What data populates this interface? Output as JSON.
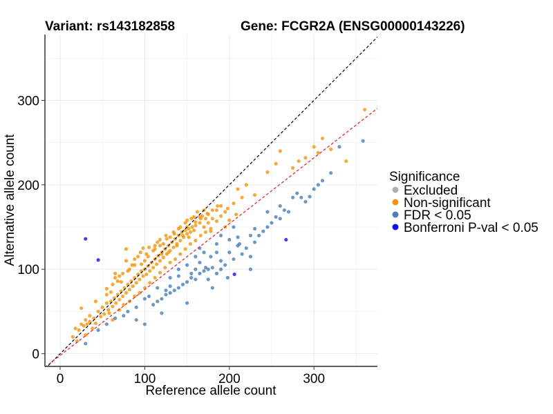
{
  "title": {
    "variant": "Variant: rs143182858",
    "gene": "Gene: FCGR2A (ENSG00000143226)"
  },
  "chart_data": {
    "type": "scatter",
    "xlabel": "Reference allele count",
    "ylabel": "Alternative allele count",
    "xlim": [
      -18,
      375
    ],
    "ylim": [
      -15,
      378
    ],
    "xticks": [
      0,
      100,
      200,
      300
    ],
    "yticks": [
      0,
      100,
      200,
      300
    ],
    "grid": true,
    "reference_lines": [
      {
        "name": "identity",
        "slope": 1.0,
        "intercept": 0,
        "color": "#000000",
        "dash": "dashed"
      },
      {
        "name": "fit",
        "slope": 0.78,
        "intercept": -2,
        "color": "#e41a1c",
        "dash": "dashed"
      }
    ],
    "legend": {
      "title": "Significance",
      "position": "right",
      "entries": [
        {
          "label": "Excluded",
          "color": "#b0b0b0"
        },
        {
          "label": "Non-significant",
          "color": "#f5930f"
        },
        {
          "label": "FDR < 0.05",
          "color": "#4a7eb5"
        },
        {
          "label": "Bonferroni P-val < 0.05",
          "color": "#1010ee"
        }
      ]
    },
    "series": [
      {
        "group": "Non-significant",
        "color": "#f5930f",
        "points": [
          [
            25,
            54
          ],
          [
            42,
            62
          ],
          [
            55,
            77
          ],
          [
            60,
            73
          ],
          [
            65,
            90
          ],
          [
            65,
            95
          ],
          [
            70,
            92
          ],
          [
            72,
            85
          ],
          [
            78,
            110
          ],
          [
            78,
            124
          ],
          [
            80,
            98
          ],
          [
            85,
            105
          ],
          [
            88,
            105
          ],
          [
            92,
            115
          ],
          [
            95,
            120
          ],
          [
            98,
            125
          ],
          [
            100,
            110
          ],
          [
            102,
            118
          ],
          [
            105,
            126
          ],
          [
            110,
            122
          ],
          [
            112,
            128
          ],
          [
            115,
            132
          ],
          [
            118,
            135
          ],
          [
            120,
            118
          ],
          [
            122,
            130
          ],
          [
            125,
            140
          ],
          [
            128,
            120
          ],
          [
            130,
            138
          ],
          [
            135,
            142
          ],
          [
            138,
            128
          ],
          [
            140,
            148
          ],
          [
            145,
            140
          ],
          [
            148,
            155
          ],
          [
            150,
            150
          ],
          [
            152,
            138
          ],
          [
            155,
            160
          ],
          [
            160,
            152
          ],
          [
            162,
            168
          ],
          [
            165,
            155
          ],
          [
            168,
            163
          ],
          [
            170,
            170
          ],
          [
            172,
            160
          ],
          [
            175,
            155
          ],
          [
            178,
            145
          ],
          [
            180,
            160
          ],
          [
            185,
            157
          ],
          [
            190,
            163
          ],
          [
            195,
            150
          ],
          [
            200,
            158
          ],
          [
            205,
            178
          ],
          [
            210,
            195
          ],
          [
            215,
            185
          ],
          [
            220,
            200
          ],
          [
            230,
            188
          ],
          [
            245,
            215
          ],
          [
            255,
            225
          ],
          [
            260,
            240
          ],
          [
            275,
            220
          ],
          [
            282,
            228
          ],
          [
            290,
            232
          ],
          [
            300,
            245
          ],
          [
            305,
            238
          ],
          [
            310,
            255
          ],
          [
            320,
            242
          ],
          [
            338,
            228
          ],
          [
            360,
            289
          ],
          [
            15,
            20
          ],
          [
            18,
            30
          ],
          [
            20,
            15
          ],
          [
            22,
            28
          ],
          [
            25,
            35
          ],
          [
            28,
            33
          ],
          [
            30,
            22
          ],
          [
            30,
            40
          ],
          [
            32,
            35
          ],
          [
            35,
            38
          ],
          [
            35,
            45
          ],
          [
            38,
            30
          ],
          [
            40,
            42
          ],
          [
            42,
            36
          ],
          [
            45,
            50
          ],
          [
            48,
            44
          ],
          [
            50,
            55
          ],
          [
            52,
            47
          ],
          [
            55,
            60
          ],
          [
            57,
            52
          ],
          [
            58,
            48
          ],
          [
            60,
            62
          ],
          [
            62,
            56
          ],
          [
            64,
            66
          ],
          [
            66,
            60
          ],
          [
            68,
            70
          ],
          [
            70,
            64
          ],
          [
            72,
            74
          ],
          [
            74,
            68
          ],
          [
            76,
            78
          ],
          [
            78,
            72
          ],
          [
            80,
            82
          ],
          [
            82,
            76
          ],
          [
            84,
            86
          ],
          [
            86,
            80
          ],
          [
            88,
            90
          ],
          [
            90,
            84
          ],
          [
            92,
            94
          ],
          [
            94,
            88
          ],
          [
            96,
            98
          ],
          [
            98,
            92
          ],
          [
            100,
            100
          ],
          [
            102,
            94
          ],
          [
            104,
            104
          ],
          [
            106,
            98
          ],
          [
            108,
            108
          ],
          [
            110,
            102
          ],
          [
            112,
            112
          ],
          [
            114,
            106
          ],
          [
            116,
            116
          ],
          [
            118,
            110
          ],
          [
            120,
            120
          ],
          [
            122,
            114
          ],
          [
            124,
            124
          ],
          [
            126,
            118
          ],
          [
            128,
            128
          ],
          [
            130,
            122
          ],
          [
            132,
            132
          ],
          [
            134,
            126
          ],
          [
            136,
            136
          ],
          [
            138,
            130
          ],
          [
            140,
            140
          ],
          [
            142,
            134
          ],
          [
            144,
            144
          ],
          [
            146,
            138
          ],
          [
            148,
            146
          ],
          [
            150,
            142
          ],
          [
            152,
            148
          ],
          [
            154,
            144
          ],
          [
            156,
            150
          ],
          [
            158,
            146
          ],
          [
            160,
            156
          ],
          [
            165,
            162
          ],
          [
            170,
            150
          ],
          [
            175,
            165
          ],
          [
            180,
            170
          ],
          [
            185,
            170
          ],
          [
            190,
            175
          ],
          [
            195,
            168
          ],
          [
            62,
            40
          ],
          [
            70,
            52
          ],
          [
            75,
            58
          ],
          [
            82,
            62
          ],
          [
            88,
            68
          ],
          [
            94,
            72
          ],
          [
            100,
            78
          ],
          [
            106,
            84
          ],
          [
            112,
            90
          ],
          [
            118,
            96
          ],
          [
            124,
            102
          ],
          [
            130,
            108
          ],
          [
            136,
            112
          ],
          [
            142,
            118
          ],
          [
            148,
            124
          ],
          [
            154,
            130
          ],
          [
            160,
            134
          ],
          [
            166,
            140
          ],
          [
            172,
            144
          ],
          [
            178,
            148
          ],
          [
            55,
            70
          ],
          [
            62,
            82
          ],
          [
            68,
            86
          ],
          [
            74,
            95
          ],
          [
            82,
            100
          ],
          [
            88,
            112
          ],
          [
            96,
            106
          ],
          [
            104,
            115
          ],
          [
            112,
            124
          ],
          [
            118,
            128
          ],
          [
            126,
            136
          ],
          [
            134,
            144
          ],
          [
            142,
            150
          ],
          [
            150,
            158
          ],
          [
            158,
            162
          ],
          [
            166,
            160
          ],
          [
            174,
            166
          ],
          [
            186,
            175
          ],
          [
            198,
            172
          ],
          [
            208,
            165
          ]
        ]
      },
      {
        "group": "FDR < 0.05",
        "color": "#4a7eb5",
        "points": [
          [
            30,
            12
          ],
          [
            45,
            28
          ],
          [
            55,
            35
          ],
          [
            65,
            42
          ],
          [
            80,
            50
          ],
          [
            90,
            55
          ],
          [
            100,
            35
          ],
          [
            105,
            68
          ],
          [
            110,
            58
          ],
          [
            115,
            62
          ],
          [
            120,
            65
          ],
          [
            125,
            70
          ],
          [
            130,
            72
          ],
          [
            135,
            75
          ],
          [
            140,
            78
          ],
          [
            145,
            82
          ],
          [
            150,
            85
          ],
          [
            155,
            90
          ],
          [
            160,
            88
          ],
          [
            165,
            95
          ],
          [
            170,
            98
          ],
          [
            175,
            100
          ],
          [
            180,
            102
          ],
          [
            185,
            95
          ],
          [
            190,
            110
          ],
          [
            195,
            105
          ],
          [
            200,
            120
          ],
          [
            205,
            112
          ],
          [
            210,
            128
          ],
          [
            215,
            118
          ],
          [
            220,
            125
          ],
          [
            225,
            115
          ],
          [
            230,
            132
          ],
          [
            235,
            140
          ],
          [
            240,
            145
          ],
          [
            245,
            150
          ],
          [
            250,
            155
          ],
          [
            255,
            162
          ],
          [
            260,
            175
          ],
          [
            265,
            170
          ],
          [
            270,
            168
          ],
          [
            275,
            185
          ],
          [
            280,
            190
          ],
          [
            285,
            185
          ],
          [
            290,
            180
          ],
          [
            295,
            186
          ],
          [
            300,
            195
          ],
          [
            305,
            200
          ],
          [
            310,
            205
          ],
          [
            320,
            214
          ],
          [
            330,
            245
          ],
          [
            358,
            252
          ],
          [
            245,
            168
          ],
          [
            260,
            160
          ],
          [
            225,
            100
          ],
          [
            198,
            90
          ],
          [
            180,
            78
          ],
          [
            150,
            60
          ],
          [
            120,
            48
          ],
          [
            90,
            40
          ],
          [
            75,
            45
          ],
          [
            130,
            80
          ],
          [
            140,
            92
          ],
          [
            155,
            95
          ],
          [
            160,
            115
          ],
          [
            170,
            120
          ],
          [
            165,
            108
          ],
          [
            175,
            88
          ],
          [
            185,
            120
          ],
          [
            190,
            100
          ],
          [
            172,
            102
          ],
          [
            185,
            130
          ],
          [
            200,
            135
          ],
          [
            210,
            138
          ],
          [
            225,
            140
          ],
          [
            165,
            125
          ],
          [
            150,
            105
          ],
          [
            140,
            100
          ],
          [
            130,
            90
          ],
          [
            125,
            75
          ],
          [
            115,
            78
          ],
          [
            100,
            65
          ],
          [
            205,
            150
          ],
          [
            190,
            140
          ],
          [
            178,
            115
          ],
          [
            160,
            100
          ],
          [
            212,
            130
          ],
          [
            230,
            148
          ]
        ]
      },
      {
        "group": "Bonferroni P-val < 0.05",
        "color": "#1010ee",
        "points": [
          [
            30,
            136
          ],
          [
            45,
            111
          ],
          [
            206,
            94
          ],
          [
            267,
            135
          ]
        ]
      }
    ]
  }
}
